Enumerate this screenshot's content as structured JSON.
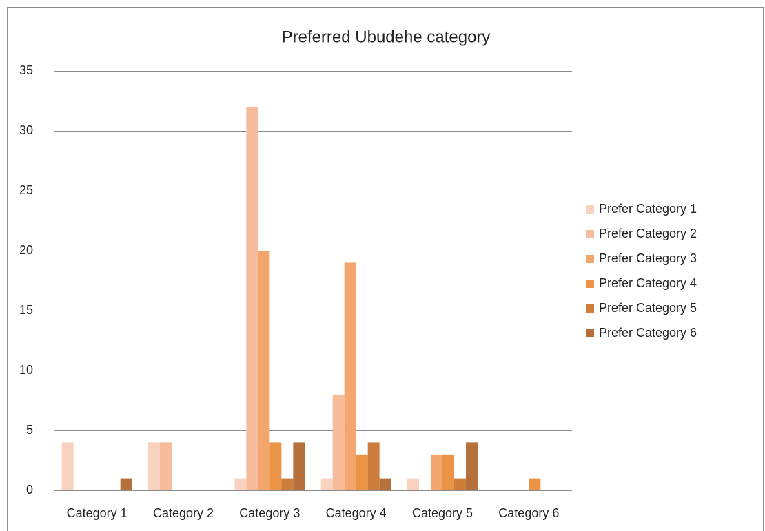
{
  "chart_data": {
    "type": "bar",
    "title": "Preferred Ubudehe category",
    "categories": [
      "Category 1",
      "Category 2",
      "Category 3",
      "Category 4",
      "Category 5",
      "Category 6"
    ],
    "series": [
      {
        "name": "Prefer Category 1",
        "color": "#f9d3c0",
        "values": [
          4,
          4,
          1,
          1,
          1,
          0
        ]
      },
      {
        "name": "Prefer Category 2",
        "color": "#f6bc9c",
        "values": [
          0,
          4,
          32,
          8,
          0,
          0
        ]
      },
      {
        "name": "Prefer Category 3",
        "color": "#f4a66f",
        "values": [
          0,
          0,
          20,
          19,
          3,
          0
        ]
      },
      {
        "name": "Prefer Category 4",
        "color": "#ec9445",
        "values": [
          0,
          0,
          4,
          3,
          3,
          1
        ]
      },
      {
        "name": "Prefer Category 5",
        "color": "#cd7e3c",
        "values": [
          0,
          0,
          1,
          4,
          1,
          0
        ]
      },
      {
        "name": "Prefer Category 6",
        "color": "#b5703c",
        "values": [
          1,
          0,
          4,
          1,
          4,
          0
        ]
      }
    ],
    "ylim": [
      0,
      35
    ],
    "yticks": [
      0,
      5,
      10,
      15,
      20,
      25,
      30,
      35
    ],
    "grid": true,
    "legend": "right"
  }
}
